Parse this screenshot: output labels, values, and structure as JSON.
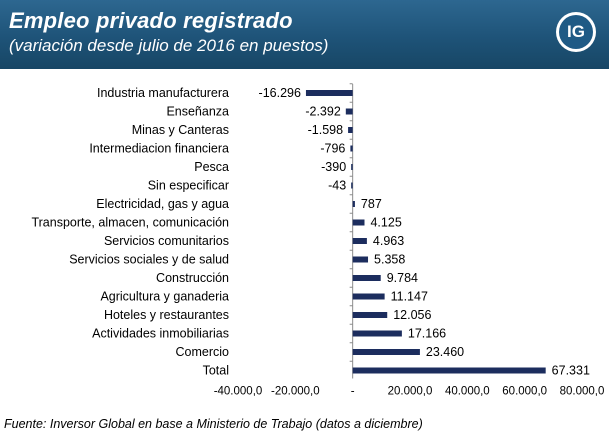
{
  "header": {
    "title": "Empleo privado registrado",
    "subtitle": "(variación desde julio de 2016 en puestos)",
    "logo_text": "IG",
    "background_color": "#1e5378"
  },
  "source": "Fuente: Inversor Global en base a Ministerio de Trabajo (datos a diciembre)",
  "chart_data": {
    "type": "bar",
    "orientation": "horizontal",
    "categories": [
      "Industria manufacturera",
      "Enseñanza",
      "Minas y Canteras",
      "Intermediacion financiera",
      "Pesca",
      "Sin especificar",
      "Electricidad, gas y agua",
      "Transporte, almacen, comunicación",
      "Servicios comunitarios",
      "Servicios sociales y de salud",
      "Construcción",
      "Agricultura y ganaderia",
      "Hoteles y restaurantes",
      "Actividades inmobiliarias",
      "Comercio",
      "Total"
    ],
    "values": [
      -16296,
      -2392,
      -1598,
      -796,
      -390,
      -43,
      787,
      4125,
      4963,
      5358,
      9784,
      11147,
      12056,
      17166,
      23460,
      67331
    ],
    "value_labels": [
      "-16.296",
      "-2.392",
      "-1.598",
      "-796",
      "-390",
      "-43",
      "787",
      "4.125",
      "4.963",
      "5.358",
      "9.784",
      "11.147",
      "12.056",
      "17.166",
      "23.460",
      "67.331"
    ],
    "xlim": [
      -40000,
      80000
    ],
    "xticks": [
      -40000,
      -20000,
      0,
      20000,
      40000,
      60000,
      80000
    ],
    "xtick_labels": [
      "-40.000,0",
      "-20.000,0",
      "-",
      "20.000,0",
      "40.000,0",
      "60.000,0",
      "80.000,0"
    ],
    "bar_color": "#1c2d5e",
    "grid": false,
    "legend": "none"
  }
}
